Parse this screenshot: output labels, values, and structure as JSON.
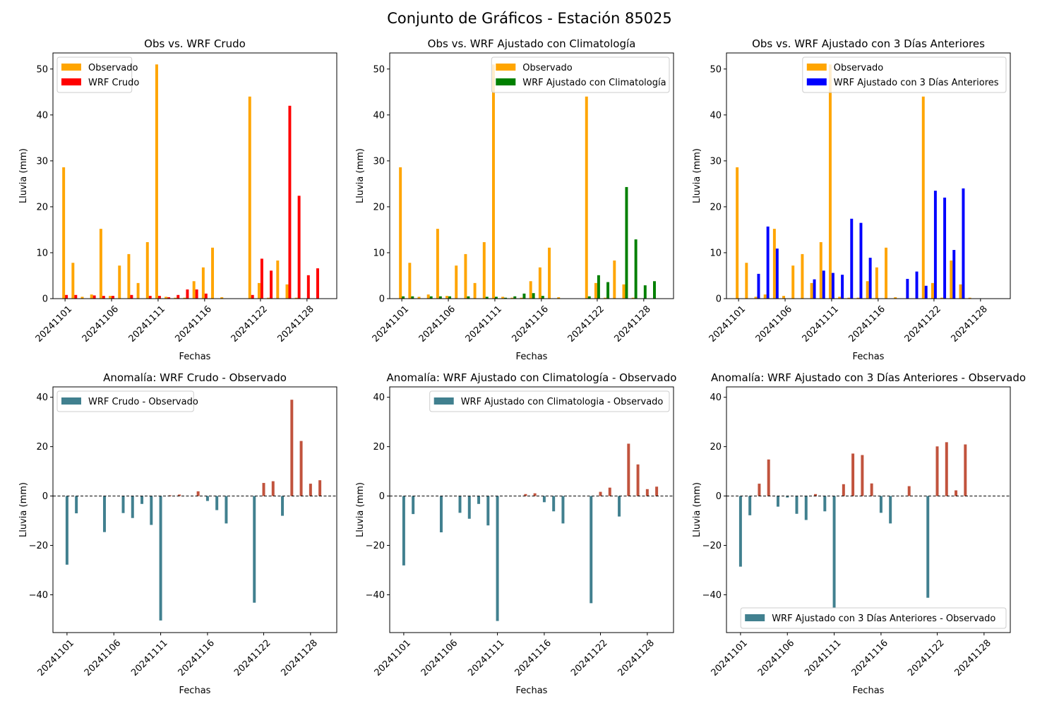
{
  "figure_title": "Conjunto de Gráficos - Estación 85025",
  "colors": {
    "observed": "#ffa500",
    "wrf_raw": "#ff0000",
    "wrf_clim": "#008000",
    "wrf_prev3": "#0000ff",
    "anomaly_negative": "#41808f",
    "anomaly_positive": "#c1533d"
  },
  "chart_data": [
    {
      "type": "bar",
      "title": "Obs vs. WRF Crudo",
      "xlabel": "Fechas",
      "ylabel": "Lluvia (mm)",
      "ylim": [
        0,
        53.5
      ],
      "yticks": [
        0,
        10,
        20,
        30,
        40,
        50
      ],
      "xlim": [
        -1.3,
        29.2
      ],
      "xtick_positions": [
        0,
        5,
        10,
        15,
        21,
        26
      ],
      "xtick_labels": [
        "20241101",
        "20241106",
        "20241111",
        "20241116",
        "20241122",
        "20241128"
      ],
      "legend_position": "upper left",
      "series": [
        {
          "name": "Observado",
          "color_key": "observed",
          "x": [
            0,
            1,
            2,
            3,
            4,
            5,
            6,
            7,
            8,
            9,
            10,
            11,
            12,
            13,
            14,
            15,
            16,
            17,
            20,
            21,
            22,
            23,
            24,
            25
          ],
          "values": [
            28.6,
            7.8,
            0.4,
            0.9,
            15.2,
            0.6,
            7.2,
            9.7,
            3.4,
            12.3,
            51.0,
            0.4,
            0.2,
            0.2,
            3.8,
            6.8,
            11.1,
            0.3,
            44.0,
            3.4,
            0.2,
            8.3,
            3.1,
            0.2
          ]
        },
        {
          "name": "WRF Crudo",
          "color_key": "wrf_raw",
          "x": [
            0,
            1,
            3,
            4,
            5,
            7,
            9,
            10,
            11,
            12,
            13,
            14,
            15,
            20,
            21,
            22,
            24,
            25,
            26,
            27
          ],
          "values": [
            0.8,
            0.8,
            0.7,
            0.6,
            0.6,
            0.8,
            0.6,
            0.6,
            0.3,
            0.8,
            2.0,
            2.0,
            1.1,
            0.8,
            8.7,
            6.1,
            42.0,
            22.4,
            5.1,
            6.6
          ]
        }
      ]
    },
    {
      "type": "bar",
      "title": "Obs vs. WRF Ajustado con Climatología",
      "xlabel": "Fechas",
      "ylabel": "Lluvia (mm)",
      "ylim": [
        0,
        53.5
      ],
      "yticks": [
        0,
        10,
        20,
        30,
        40,
        50
      ],
      "xlim": [
        -1.3,
        29.2
      ],
      "xtick_positions": [
        0,
        5,
        10,
        15,
        21,
        26
      ],
      "xtick_labels": [
        "20241101",
        "20241106",
        "20241111",
        "20241116",
        "20241122",
        "20241128"
      ],
      "legend_position": "upper right",
      "series": [
        {
          "name": "Observado",
          "color_key": "observed",
          "x": [
            0,
            1,
            2,
            3,
            4,
            5,
            6,
            7,
            8,
            9,
            10,
            11,
            12,
            13,
            14,
            15,
            16,
            17,
            20,
            21,
            22,
            23,
            24,
            25
          ],
          "values": [
            28.6,
            7.8,
            0.4,
            0.9,
            15.2,
            0.6,
            7.2,
            9.7,
            3.4,
            12.3,
            51.0,
            0.4,
            0.2,
            0.2,
            3.8,
            6.8,
            11.1,
            0.3,
            44.0,
            3.4,
            0.2,
            8.3,
            3.1,
            0.2
          ]
        },
        {
          "name": "WRF Ajustado con Climatología",
          "color_key": "wrf_clim",
          "x": [
            0,
            1,
            3,
            4,
            5,
            7,
            9,
            10,
            11,
            12,
            13,
            14,
            15,
            20,
            21,
            22,
            24,
            25,
            26,
            27
          ],
          "values": [
            0.5,
            0.5,
            0.5,
            0.5,
            0.5,
            0.5,
            0.4,
            0.4,
            0.2,
            0.5,
            1.1,
            1.2,
            0.6,
            0.5,
            5.1,
            3.6,
            24.3,
            12.9,
            2.9,
            3.8
          ]
        }
      ]
    },
    {
      "type": "bar",
      "title": "Obs vs. WRF Ajustado con 3 Días Anteriores",
      "xlabel": "Fechas",
      "ylabel": "Lluvia (mm)",
      "ylim": [
        0,
        53.5
      ],
      "yticks": [
        0,
        10,
        20,
        30,
        40,
        50
      ],
      "xlim": [
        -1.3,
        29.2
      ],
      "xtick_positions": [
        0,
        5,
        10,
        15,
        21,
        26
      ],
      "xtick_labels": [
        "20241101",
        "20241106",
        "20241111",
        "20241116",
        "20241122",
        "20241128"
      ],
      "legend_position": "upper right",
      "series": [
        {
          "name": "Observado",
          "color_key": "observed",
          "x": [
            0,
            1,
            2,
            3,
            4,
            5,
            6,
            7,
            8,
            9,
            10,
            11,
            12,
            13,
            14,
            15,
            16,
            17,
            20,
            21,
            22,
            23,
            24,
            25
          ],
          "values": [
            28.6,
            7.8,
            0.4,
            0.9,
            15.2,
            0.6,
            7.2,
            9.7,
            3.4,
            12.3,
            51.0,
            0.4,
            0.2,
            0.2,
            3.8,
            6.8,
            11.1,
            0.3,
            44.0,
            3.4,
            0.2,
            8.3,
            3.1,
            0.2
          ]
        },
        {
          "name": "WRF Ajustado con 3 Días Anteriores",
          "color_key": "wrf_prev3",
          "x": [
            2,
            3,
            4,
            8,
            9,
            10,
            11,
            12,
            13,
            14,
            18,
            19,
            20,
            21,
            22,
            23,
            24
          ],
          "values": [
            5.4,
            15.7,
            10.9,
            4.2,
            6.1,
            5.6,
            5.2,
            17.4,
            16.5,
            8.9,
            4.3,
            5.9,
            2.8,
            23.5,
            22.0,
            10.6,
            24.0
          ]
        }
      ]
    },
    {
      "type": "bar",
      "title": "Anomalía: WRF Crudo - Observado",
      "xlabel": "Fechas",
      "ylabel": "Lluvia (mm)",
      "ylim": [
        -55.3,
        44.2
      ],
      "yticks": [
        -40,
        -20,
        0,
        20,
        40
      ],
      "xlim": [
        -1.5,
        28.8
      ],
      "xtick_positions": [
        0,
        5,
        10,
        15,
        21,
        26
      ],
      "xtick_labels": [
        "20241101",
        "20241106",
        "20241111",
        "20241116",
        "20241122",
        "20241128"
      ],
      "legend_position": "upper left",
      "zero_line": true,
      "legend_label": "WRF Crudo - Observado",
      "x": [
        0,
        1,
        4,
        6,
        7,
        8,
        9,
        10,
        11,
        12,
        14,
        15,
        16,
        17,
        20,
        21,
        22,
        23,
        24,
        25,
        26,
        27
      ],
      "values": [
        -27.8,
        -7.0,
        -14.6,
        -6.9,
        -8.9,
        -3.2,
        -11.7,
        -50.4,
        0.3,
        0.6,
        1.9,
        -2.0,
        -5.7,
        -11.1,
        -43.2,
        5.3,
        6.0,
        -8.0,
        39.0,
        22.3,
        5.0,
        6.4
      ]
    },
    {
      "type": "bar",
      "title": "Anomalía: WRF Ajustado con Climatología - Observado",
      "xlabel": "Fechas",
      "ylabel": "Lluvia (mm)",
      "ylim": [
        -55.3,
        44.2
      ],
      "yticks": [
        -40,
        -20,
        0,
        20,
        40
      ],
      "xlim": [
        -1.5,
        28.8
      ],
      "xtick_positions": [
        0,
        5,
        10,
        15,
        21,
        26
      ],
      "xtick_labels": [
        "20241101",
        "20241106",
        "20241111",
        "20241116",
        "20241122",
        "20241128"
      ],
      "legend_position": "upper right",
      "zero_line": true,
      "legend_label": "WRF Ajustado con Climatologia - Observado",
      "x": [
        0,
        1,
        4,
        6,
        7,
        8,
        9,
        10,
        13,
        14,
        15,
        16,
        17,
        20,
        21,
        22,
        23,
        24,
        25,
        26,
        27
      ],
      "values": [
        -28.1,
        -7.3,
        -14.7,
        -6.8,
        -9.2,
        -3.2,
        -11.9,
        -50.6,
        0.8,
        1.1,
        -2.5,
        -6.2,
        -11.1,
        -43.4,
        1.7,
        3.4,
        -8.3,
        21.2,
        12.8,
        2.8,
        3.8
      ]
    },
    {
      "type": "bar",
      "title": "Anomalía: WRF Ajustado con 3 Días Anteriores - Observado",
      "xlabel": "Fechas",
      "ylabel": "Lluvia (mm)",
      "ylim": [
        -55.3,
        44.2
      ],
      "yticks": [
        -40,
        -20,
        0,
        20,
        40
      ],
      "xlim": [
        -1.5,
        28.8
      ],
      "xtick_positions": [
        0,
        5,
        10,
        15,
        21,
        26
      ],
      "xtick_labels": [
        "20241101",
        "20241106",
        "20241111",
        "20241116",
        "20241122",
        "20241128"
      ],
      "legend_position": "lower right",
      "zero_line": true,
      "legend_label": "WRF Ajustado con 3 Días Anteriores - Observado",
      "x": [
        0,
        1,
        2,
        3,
        4,
        5,
        6,
        7,
        8,
        9,
        10,
        11,
        12,
        13,
        14,
        15,
        16,
        18,
        20,
        21,
        22,
        23,
        24
      ],
      "values": [
        -28.6,
        -7.8,
        5.0,
        14.8,
        -4.3,
        -0.6,
        -7.2,
        -9.7,
        0.8,
        -6.2,
        -45.4,
        4.8,
        17.2,
        16.6,
        5.1,
        -6.8,
        -11.1,
        4.0,
        -41.2,
        20.1,
        21.8,
        2.3,
        20.9
      ]
    }
  ]
}
